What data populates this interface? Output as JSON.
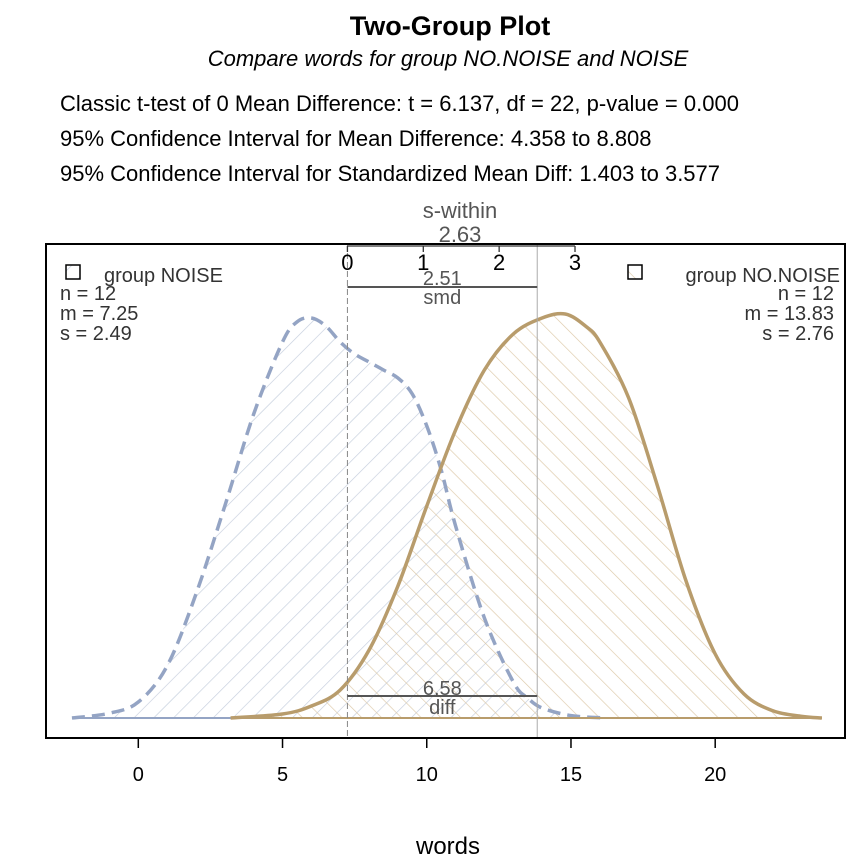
{
  "chart_data": {
    "type": "area",
    "title": "Two-Group Plot",
    "subtitle": "Compare words for group NO.NOISE and NOISE",
    "stats": [
      "Classic t-test of 0 Mean Difference:   t = 6.137,  df = 22,   p-value = 0.000",
      "95% Confidence Interval for Mean Difference:  4.358 to 8.808",
      "95% Confidence Interval for Standardized Mean Diff:   1.403 to 3.577"
    ],
    "xlabel": "words",
    "xlim": [
      -3.2,
      24.5
    ],
    "ylim": [
      0,
      1
    ],
    "x_ticks": [
      0,
      5,
      10,
      15,
      20
    ],
    "smd_axis": {
      "title": "s-within",
      "value_label": "2.63",
      "ticks": [
        0,
        1,
        2,
        3
      ]
    },
    "smd": {
      "value_label": "2.51",
      "label": "smd",
      "value": 2.51
    },
    "diff": {
      "value_label": "6.58",
      "label": "diff",
      "value": 6.58
    },
    "series": [
      {
        "name": "group NOISE",
        "legend_label": "group NOISE",
        "n_label": "n = 12",
        "m_label": "m = 7.25",
        "s_label": "s = 2.49",
        "mean": 7.25,
        "color": "#94a4c4",
        "x": [
          -2.3,
          -1,
          0,
          1,
          2,
          3,
          4,
          5,
          5.5,
          6,
          6.5,
          7,
          7.5,
          8,
          8.5,
          9,
          9.5,
          10,
          10.5,
          11,
          12,
          13,
          13.5,
          14,
          15,
          16.2
        ],
        "density": [
          0.0,
          0.012,
          0.04,
          0.13,
          0.31,
          0.53,
          0.76,
          0.94,
          0.99,
          1.0,
          0.98,
          0.94,
          0.91,
          0.89,
          0.87,
          0.85,
          0.81,
          0.73,
          0.62,
          0.48,
          0.25,
          0.09,
          0.05,
          0.025,
          0.006,
          0.0
        ]
      },
      {
        "name": "group NO.NOISE",
        "legend_label": "group NO.NOISE",
        "n_label": "n = 12",
        "m_label": "m = 13.83",
        "s_label": "s = 2.76",
        "mean": 13.83,
        "color": "#b89c6c",
        "x": [
          3.2,
          5,
          6,
          7,
          8,
          9,
          10,
          11,
          12,
          13,
          14,
          14.8,
          15.5,
          16,
          17,
          18,
          19,
          20,
          21,
          22,
          23,
          23.7
        ],
        "density": [
          0.0,
          0.01,
          0.03,
          0.07,
          0.17,
          0.33,
          0.53,
          0.72,
          0.87,
          0.96,
          1.0,
          1.01,
          0.98,
          0.94,
          0.8,
          0.58,
          0.34,
          0.16,
          0.06,
          0.018,
          0.004,
          0.0
        ]
      }
    ]
  }
}
